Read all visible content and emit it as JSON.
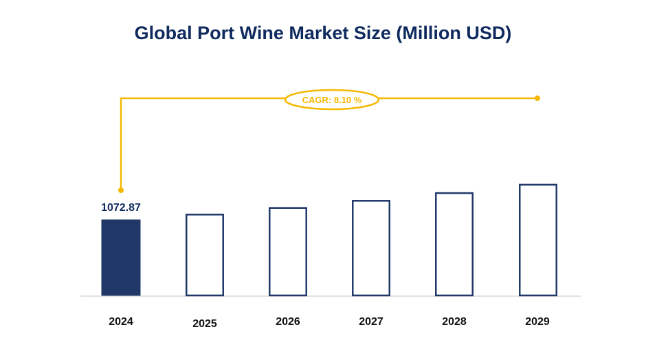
{
  "chart_data": {
    "type": "bar",
    "title": "Global Port Wine Market Size (Million USD)",
    "categories": [
      "2024",
      "2025",
      "2026",
      "2027",
      "2028",
      "2029"
    ],
    "values": [
      1072.87,
      1159.77,
      1253.71,
      1355.26,
      1465.04,
      1583.71
    ],
    "value_labels": [
      "1072.87",
      "",
      "",
      "",
      "",
      ""
    ],
    "xlabel": "",
    "ylabel": "",
    "ylim": [
      0,
      1700
    ],
    "grid": false,
    "legend": null,
    "annotations": [
      {
        "type": "cagr-bracket",
        "text": "CAGR: 8.10 %",
        "from": "2024",
        "to": "2029"
      }
    ],
    "colors": {
      "highlight_fill": "#1f3868",
      "outline": "#1f3868",
      "cagr": "#f5b800",
      "baseline": "#d9d9d9"
    }
  },
  "title": "Global Port Wine Market Size (Million USD)",
  "cagr_label": "CAGR: 8.10 %",
  "first_value_label": "1072.87",
  "x_labels": [
    "2024",
    "2025",
    "2026",
    "2027",
    "2028",
    "2029"
  ]
}
